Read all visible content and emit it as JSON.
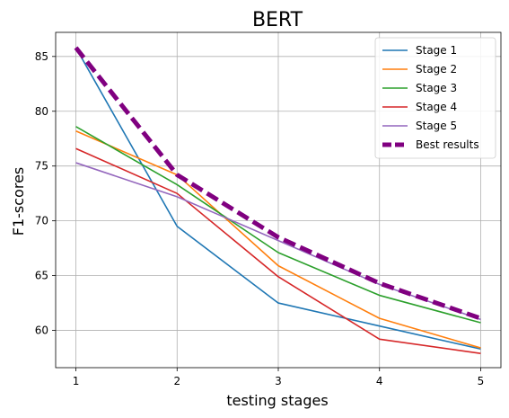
{
  "chart_data": {
    "type": "line",
    "title": "BERT",
    "xlabel": "testing stages",
    "ylabel": "F1-scores",
    "x": [
      1,
      2,
      3,
      4,
      5
    ],
    "xticks": [
      "1",
      "2",
      "3",
      "4",
      "5"
    ],
    "yticks": [
      "60",
      "65",
      "70",
      "75",
      "80",
      "85"
    ],
    "xlim": [
      0.8,
      5.2
    ],
    "ylim": [
      56.6,
      87.2
    ],
    "grid": true,
    "legend_position": "top-right",
    "series": [
      {
        "name": "Stage 1",
        "color": "#1f77b4",
        "style": "solid",
        "values": [
          85.8,
          69.5,
          62.5,
          60.4,
          58.3
        ]
      },
      {
        "name": "Stage 2",
        "color": "#ff7f0e",
        "style": "solid",
        "values": [
          78.2,
          74.2,
          65.9,
          61.1,
          58.4
        ]
      },
      {
        "name": "Stage 3",
        "color": "#2ca02c",
        "style": "solid",
        "values": [
          78.6,
          73.3,
          67.1,
          63.2,
          60.7
        ]
      },
      {
        "name": "Stage 4",
        "color": "#d62728",
        "style": "solid",
        "values": [
          76.6,
          72.5,
          64.9,
          59.2,
          57.9
        ]
      },
      {
        "name": "Stage 5",
        "color": "#9467bd",
        "style": "solid",
        "values": [
          75.3,
          72.2,
          68.2,
          64.2,
          61.0
        ]
      },
      {
        "name": "Best results",
        "color": "#800080",
        "style": "dashed",
        "values": [
          85.8,
          74.2,
          68.5,
          64.3,
          61.1
        ]
      }
    ]
  }
}
